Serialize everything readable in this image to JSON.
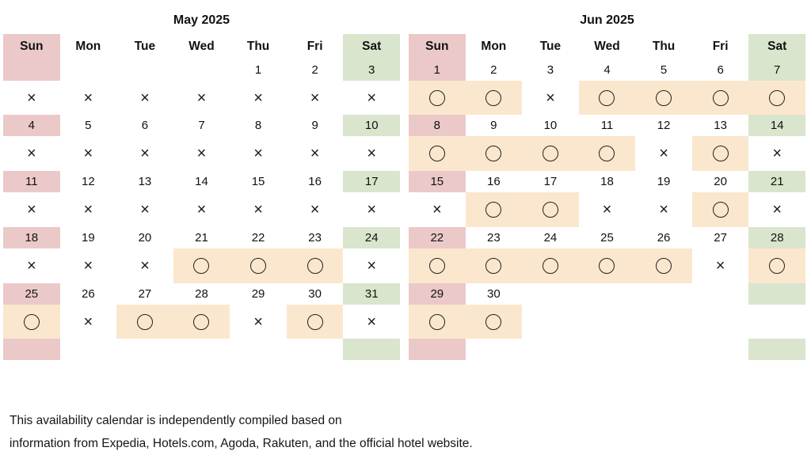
{
  "colors": {
    "sunday_highlight": "#ebc9c9",
    "saturday_highlight": "#d9e5cc",
    "available_highlight": "#fbe7cd",
    "text": "#111111"
  },
  "symbols": {
    "available": "○",
    "unavailable": "×"
  },
  "calendars": [
    {
      "title": "May 2025",
      "day_headers": [
        "Sun",
        "Mon",
        "Tue",
        "Wed",
        "Thu",
        "Fri",
        "Sat"
      ],
      "weeks": [
        {
          "dates": [
            "",
            "",
            "",
            "",
            "1",
            "2",
            "3"
          ],
          "status": [
            "x",
            "x",
            "x",
            "x",
            "x",
            "x",
            "x"
          ]
        },
        {
          "dates": [
            "4",
            "5",
            "6",
            "7",
            "8",
            "9",
            "10"
          ],
          "status": [
            "x",
            "x",
            "x",
            "x",
            "x",
            "x",
            "x"
          ]
        },
        {
          "dates": [
            "11",
            "12",
            "13",
            "14",
            "15",
            "16",
            "17"
          ],
          "status": [
            "x",
            "x",
            "x",
            "x",
            "x",
            "x",
            "x"
          ]
        },
        {
          "dates": [
            "18",
            "19",
            "20",
            "21",
            "22",
            "23",
            "24"
          ],
          "status": [
            "x",
            "x",
            "x",
            "o",
            "o",
            "o",
            "x"
          ]
        },
        {
          "dates": [
            "25",
            "26",
            "27",
            "28",
            "29",
            "30",
            "31"
          ],
          "status": [
            "o",
            "x",
            "o",
            "o",
            "x",
            "o",
            "x"
          ]
        }
      ]
    },
    {
      "title": "Jun 2025",
      "day_headers": [
        "Sun",
        "Mon",
        "Tue",
        "Wed",
        "Thu",
        "Fri",
        "Sat"
      ],
      "weeks": [
        {
          "dates": [
            "1",
            "2",
            "3",
            "4",
            "5",
            "6",
            "7"
          ],
          "status": [
            "o",
            "o",
            "x",
            "o",
            "o",
            "o",
            "o"
          ]
        },
        {
          "dates": [
            "8",
            "9",
            "10",
            "11",
            "12",
            "13",
            "14"
          ],
          "status": [
            "o",
            "o",
            "o",
            "o",
            "x",
            "o",
            "x"
          ]
        },
        {
          "dates": [
            "15",
            "16",
            "17",
            "18",
            "19",
            "20",
            "21"
          ],
          "status": [
            "x",
            "o",
            "o",
            "x",
            "x",
            "o",
            "x"
          ]
        },
        {
          "dates": [
            "22",
            "23",
            "24",
            "25",
            "26",
            "27",
            "28"
          ],
          "status": [
            "o",
            "o",
            "o",
            "o",
            "o",
            "x",
            "o"
          ]
        },
        {
          "dates": [
            "29",
            "30",
            "",
            "",
            "",
            "",
            ""
          ],
          "status": [
            "o",
            "o",
            "",
            "",
            "",
            "",
            ""
          ]
        }
      ]
    }
  ],
  "footer": {
    "line1": "This availability calendar is independently compiled based on",
    "line2": "information from Expedia, Hotels.com, Agoda, Rakuten, and the official hotel website."
  }
}
